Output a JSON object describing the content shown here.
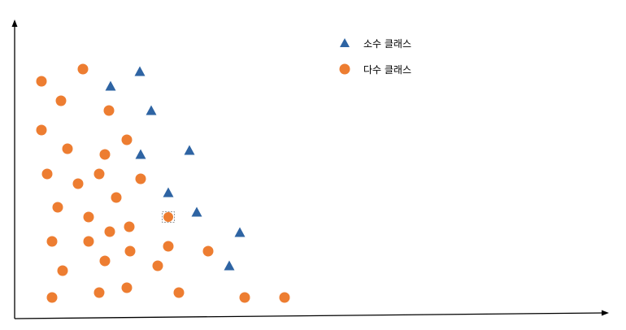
{
  "legend": {
    "minority_label": "소수 클래스",
    "majority_label": "다수 클래스"
  },
  "colors": {
    "minority": "#2E64A3",
    "majority": "#ED7D31",
    "axis": "#000000",
    "highlight_border": "#999999"
  },
  "minority_points": [
    [
      172,
      88
    ],
    [
      136,
      106
    ],
    [
      186,
      136
    ],
    [
      233,
      185
    ],
    [
      173,
      190
    ],
    [
      207,
      237
    ],
    [
      242,
      261
    ],
    [
      295,
      286
    ],
    [
      282,
      327
    ]
  ],
  "majority_points": [
    [
      102,
      85
    ],
    [
      51,
      100
    ],
    [
      75,
      124
    ],
    [
      134,
      136
    ],
    [
      51,
      160
    ],
    [
      156,
      172
    ],
    [
      83,
      183
    ],
    [
      129,
      190
    ],
    [
      58,
      214
    ],
    [
      122,
      214
    ],
    [
      173,
      220
    ],
    [
      96,
      226
    ],
    [
      143,
      243
    ],
    [
      71,
      255
    ],
    [
      109,
      267
    ],
    [
      159,
      279
    ],
    [
      135,
      285
    ],
    [
      64,
      297
    ],
    [
      109,
      297
    ],
    [
      207,
      303
    ],
    [
      160,
      309
    ],
    [
      256,
      309
    ],
    [
      129,
      321
    ],
    [
      194,
      327
    ],
    [
      77,
      333
    ],
    [
      156,
      354
    ],
    [
      122,
      360
    ],
    [
      220,
      360
    ],
    [
      64,
      366
    ],
    [
      301,
      366
    ],
    [
      350,
      366
    ]
  ],
  "highlighted_point": [
    207,
    267
  ]
}
